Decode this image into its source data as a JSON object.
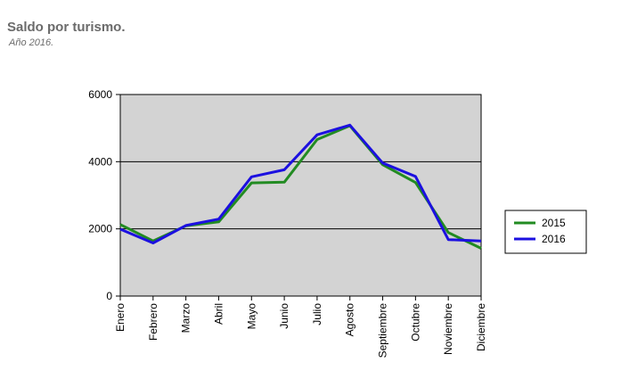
{
  "header": {
    "title": "Saldo por turismo.",
    "subtitle": "Año  2016."
  },
  "colors": {
    "plot_background": "#d3d3d3",
    "series_2015": "#228b22",
    "series_2016": "#1c10e0"
  },
  "chart_data": {
    "type": "line",
    "title": "Saldo por turismo.",
    "subtitle": "Año  2016.",
    "xlabel": "",
    "ylabel": "",
    "categories": [
      "Enero",
      "Febrero",
      "Marzo",
      "Abril",
      "Mayo",
      "Junio",
      "Julio",
      "Agosto",
      "Septiembre",
      "Octubre",
      "Noviembre",
      "Diciembre"
    ],
    "series": [
      {
        "name": "2015",
        "color": "#228b22",
        "values": [
          2130,
          1640,
          2090,
          2210,
          3370,
          3390,
          4660,
          5070,
          3910,
          3380,
          1890,
          1420
        ]
      },
      {
        "name": "2016",
        "color": "#1c10e0",
        "values": [
          1990,
          1580,
          2100,
          2290,
          3550,
          3760,
          4800,
          5090,
          3960,
          3560,
          1680,
          1640
        ]
      }
    ],
    "ylim": [
      0,
      6000
    ],
    "yticks": [
      0,
      2000,
      4000,
      6000
    ],
    "grid": "horizontal",
    "legend": "right"
  }
}
